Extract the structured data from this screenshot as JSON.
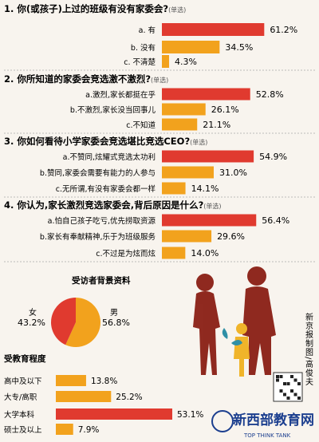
{
  "colors": {
    "bar_red": "#e03a2f",
    "bar_orange": "#f2a21d",
    "bg": "#f8f4ee",
    "figure": "#8a1f14",
    "text": "#222222"
  },
  "chart_data": [
    {
      "type": "bar",
      "title": "1. 你(或孩子)上过的班级有没有家委会?",
      "tag": "(单选)",
      "categories": [
        "a. 有",
        "b. 没有",
        "c. 不清楚"
      ],
      "values": [
        61.2,
        34.5,
        4.3
      ],
      "value_labels": [
        "61.2%",
        "34.5%",
        "4.3%"
      ]
    },
    {
      "type": "bar",
      "title": "2. 你所知道的家委会竞选激不激烈?",
      "tag": "(单选)",
      "categories": [
        "a.激烈,家长都挺在乎",
        "b.不激烈,家长没当回事儿",
        "c.不知道"
      ],
      "values": [
        52.8,
        26.1,
        21.1
      ],
      "value_labels": [
        "52.8%",
        "26.1%",
        "21.1%"
      ]
    },
    {
      "type": "bar",
      "title": "3. 你如何看待小学家委会竞选堪比竞选CEO?",
      "tag": "(单选)",
      "categories": [
        "a.不赞同,炫耀式竞选太功利",
        "b.赞同,家委会需要有能力的人参与",
        "c.无所谓,有没有家委会都一样"
      ],
      "values": [
        54.9,
        31.0,
        14.1
      ],
      "value_labels": [
        "54.9%",
        "31.0%",
        "14.1%"
      ]
    },
    {
      "type": "bar",
      "title": "4. 你认为,家长激烈竞选家委会,背后原因是什么?",
      "tag": "(单选)",
      "categories": [
        "a.怕自己孩子吃亏,优先捞取资源",
        "b.家长有奉献精神,乐于为班级服务",
        "c.不过是为炫而炫"
      ],
      "values": [
        56.4,
        29.6,
        14.0
      ],
      "value_labels": [
        "56.4%",
        "29.6%",
        "14.0%"
      ]
    },
    {
      "type": "pie",
      "title": "受访者背景资料",
      "categories": [
        "女",
        "男"
      ],
      "values": [
        43.2,
        56.8
      ],
      "value_labels": [
        "43.2%",
        "56.8%"
      ]
    },
    {
      "type": "bar",
      "title": "受教育程度",
      "categories": [
        "高中及以下",
        "大专/高职",
        "大学本科",
        "硕士及以上"
      ],
      "values": [
        13.8,
        25.2,
        53.1,
        7.9
      ],
      "value_labels": [
        "13.8%",
        "25.2%",
        "53.1%",
        "7.9%"
      ]
    }
  ],
  "credit": "新京报制图/高俊夫",
  "watermark": {
    "brand": "新西部教育网",
    "sub": "TOP THINK TANK"
  }
}
